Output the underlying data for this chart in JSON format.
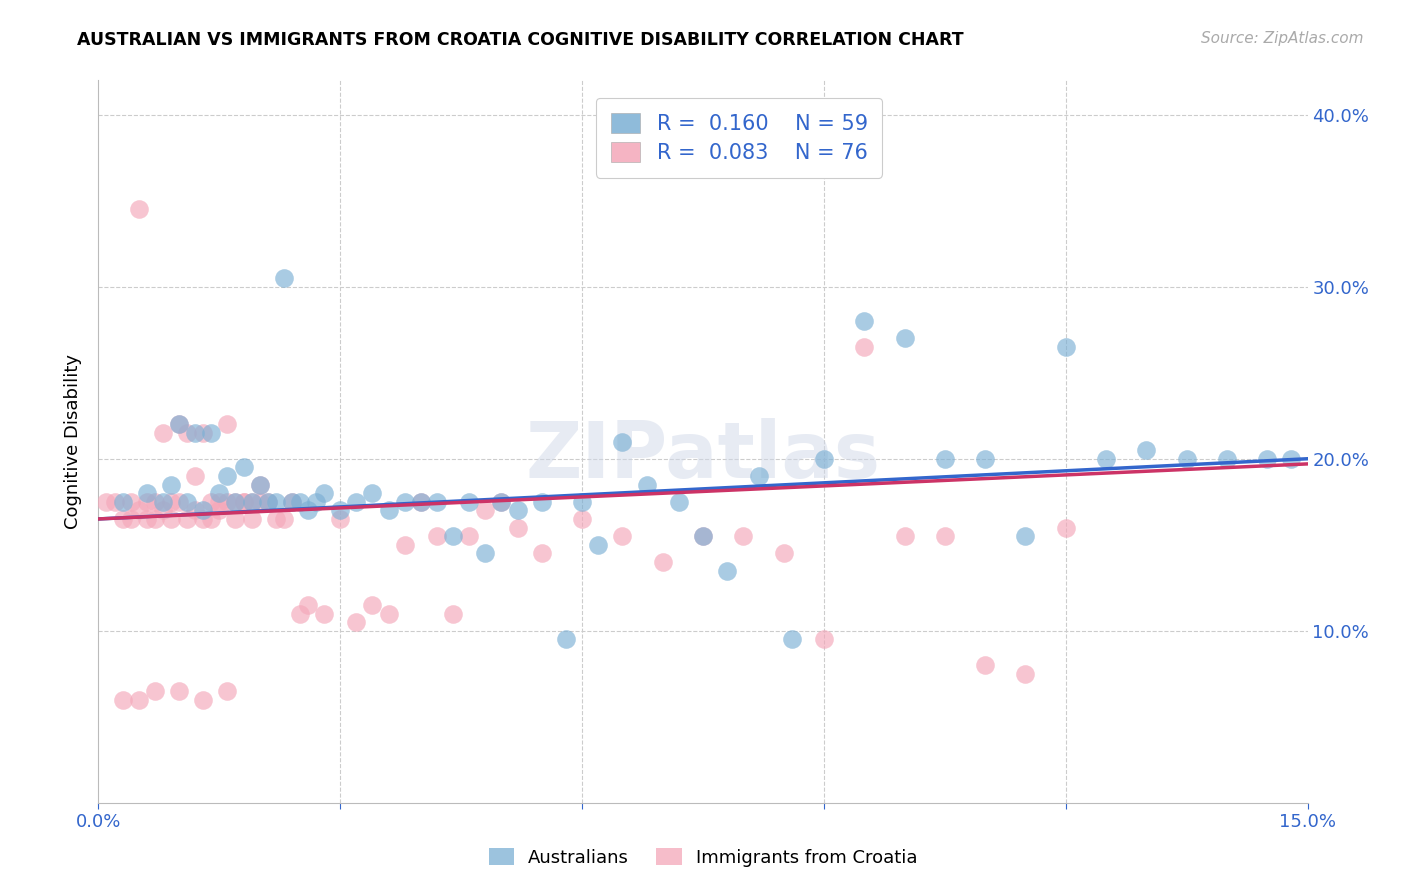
{
  "title": "AUSTRALIAN VS IMMIGRANTS FROM CROATIA COGNITIVE DISABILITY CORRELATION CHART",
  "source": "Source: ZipAtlas.com",
  "ylabel": "Cognitive Disability",
  "xlim": [
    0.0,
    0.15
  ],
  "ylim": [
    0.0,
    0.42
  ],
  "xticks": [
    0.0,
    0.03,
    0.06,
    0.09,
    0.12,
    0.15
  ],
  "xticklabels": [
    "0.0%",
    "",
    "",
    "",
    "",
    "15.0%"
  ],
  "yticks_right": [
    0.1,
    0.2,
    0.3,
    0.4
  ],
  "ytick_right_labels": [
    "10.0%",
    "20.0%",
    "30.0%",
    "40.0%"
  ],
  "grid_color": "#cccccc",
  "background_color": "#ffffff",
  "blue_color": "#7bafd4",
  "pink_color": "#f4a7b9",
  "blue_line_color": "#3366cc",
  "pink_line_color": "#cc3366",
  "R_blue": 0.16,
  "N_blue": 59,
  "R_pink": 0.083,
  "N_pink": 76,
  "watermark": "ZIPatlas",
  "legend_label_blue": "Australians",
  "legend_label_pink": "Immigrants from Croatia",
  "blue_x": [
    0.003,
    0.006,
    0.008,
    0.009,
    0.01,
    0.011,
    0.012,
    0.013,
    0.014,
    0.015,
    0.016,
    0.017,
    0.018,
    0.019,
    0.02,
    0.021,
    0.022,
    0.023,
    0.024,
    0.025,
    0.026,
    0.027,
    0.028,
    0.03,
    0.032,
    0.034,
    0.036,
    0.038,
    0.04,
    0.042,
    0.044,
    0.046,
    0.048,
    0.05,
    0.052,
    0.055,
    0.058,
    0.06,
    0.062,
    0.065,
    0.068,
    0.072,
    0.075,
    0.078,
    0.082,
    0.086,
    0.09,
    0.095,
    0.1,
    0.105,
    0.11,
    0.115,
    0.12,
    0.125,
    0.13,
    0.135,
    0.14,
    0.145,
    0.148
  ],
  "blue_y": [
    0.175,
    0.18,
    0.175,
    0.185,
    0.22,
    0.175,
    0.215,
    0.17,
    0.215,
    0.18,
    0.19,
    0.175,
    0.195,
    0.175,
    0.185,
    0.175,
    0.175,
    0.305,
    0.175,
    0.175,
    0.17,
    0.175,
    0.18,
    0.17,
    0.175,
    0.18,
    0.17,
    0.175,
    0.175,
    0.175,
    0.155,
    0.175,
    0.145,
    0.175,
    0.17,
    0.175,
    0.095,
    0.175,
    0.15,
    0.21,
    0.185,
    0.175,
    0.155,
    0.135,
    0.19,
    0.095,
    0.2,
    0.28,
    0.27,
    0.2,
    0.2,
    0.155,
    0.265,
    0.2,
    0.205,
    0.2,
    0.2,
    0.2,
    0.2
  ],
  "pink_x": [
    0.001,
    0.002,
    0.003,
    0.004,
    0.004,
    0.005,
    0.005,
    0.006,
    0.006,
    0.007,
    0.007,
    0.008,
    0.008,
    0.009,
    0.009,
    0.01,
    0.01,
    0.011,
    0.011,
    0.012,
    0.012,
    0.013,
    0.013,
    0.014,
    0.014,
    0.015,
    0.015,
    0.016,
    0.016,
    0.017,
    0.017,
    0.018,
    0.018,
    0.019,
    0.019,
    0.02,
    0.02,
    0.021,
    0.022,
    0.023,
    0.024,
    0.025,
    0.026,
    0.028,
    0.03,
    0.032,
    0.034,
    0.036,
    0.038,
    0.04,
    0.042,
    0.044,
    0.046,
    0.048,
    0.05,
    0.052,
    0.055,
    0.06,
    0.065,
    0.07,
    0.075,
    0.08,
    0.085,
    0.09,
    0.095,
    0.1,
    0.105,
    0.11,
    0.115,
    0.12,
    0.003,
    0.005,
    0.007,
    0.01,
    0.013,
    0.016
  ],
  "pink_y": [
    0.175,
    0.175,
    0.165,
    0.175,
    0.165,
    0.345,
    0.17,
    0.165,
    0.175,
    0.165,
    0.175,
    0.17,
    0.215,
    0.165,
    0.175,
    0.175,
    0.22,
    0.215,
    0.165,
    0.17,
    0.19,
    0.165,
    0.215,
    0.165,
    0.175,
    0.17,
    0.175,
    0.175,
    0.22,
    0.175,
    0.165,
    0.175,
    0.175,
    0.165,
    0.175,
    0.175,
    0.185,
    0.175,
    0.165,
    0.165,
    0.175,
    0.11,
    0.115,
    0.11,
    0.165,
    0.105,
    0.115,
    0.11,
    0.15,
    0.175,
    0.155,
    0.11,
    0.155,
    0.17,
    0.175,
    0.16,
    0.145,
    0.165,
    0.155,
    0.14,
    0.155,
    0.155,
    0.145,
    0.095,
    0.265,
    0.155,
    0.155,
    0.08,
    0.075,
    0.16,
    0.06,
    0.06,
    0.065,
    0.065,
    0.06,
    0.065
  ]
}
